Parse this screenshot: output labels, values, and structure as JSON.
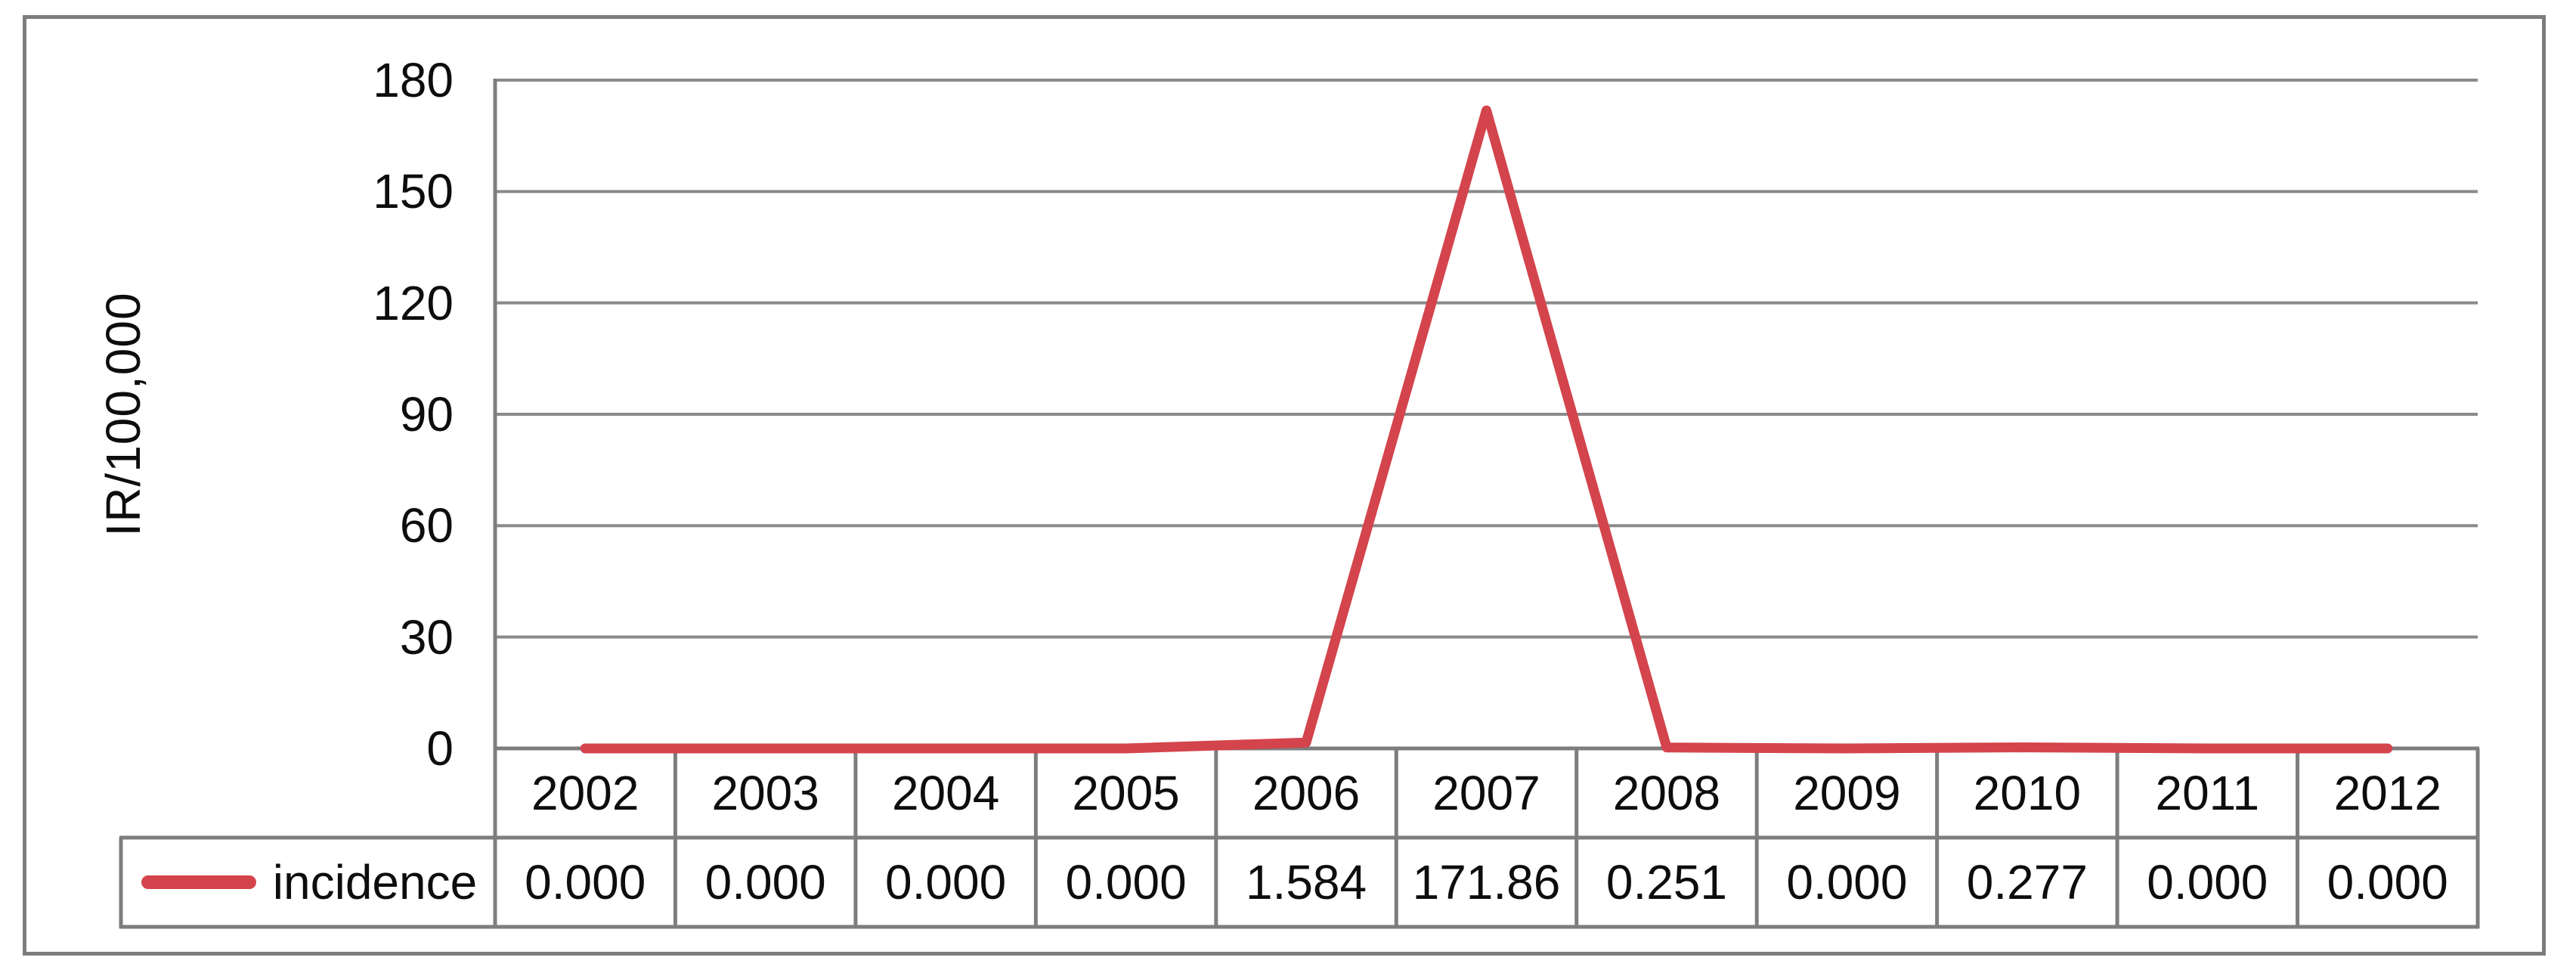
{
  "chart_data": {
    "type": "line",
    "title": "",
    "xlabel": "",
    "ylabel": "IR/100,000",
    "ylim": [
      0,
      180
    ],
    "y_tick_labels": [
      "180",
      "150",
      "120",
      "90",
      "60",
      "30",
      "0"
    ],
    "grid": "horizontal-major",
    "legend_position": "data-table-left",
    "data_table_shown": true,
    "categories": [
      "2002",
      "2003",
      "2004",
      "2005",
      "2006",
      "2007",
      "2008",
      "2009",
      "2010",
      "2011",
      "2012"
    ],
    "series": [
      {
        "name": "incidence",
        "values": [
          0.0,
          0.0,
          0.0,
          0.0,
          1.584,
          171.86,
          0.251,
          0.0,
          0.277,
          0.0,
          0.0
        ],
        "display_values": [
          "0.000",
          "0.000",
          "0.000",
          "0.000",
          "1.584",
          "171.86",
          "0.251",
          "0.000",
          "0.277",
          "0.000",
          "0.000"
        ],
        "color": "#d4444c"
      }
    ]
  },
  "colors": {
    "line": "#d4444c",
    "gridline": "#8a8a8a",
    "border": "#7d7d7d",
    "text": "#0d0d0d",
    "background": "#ffffff"
  }
}
